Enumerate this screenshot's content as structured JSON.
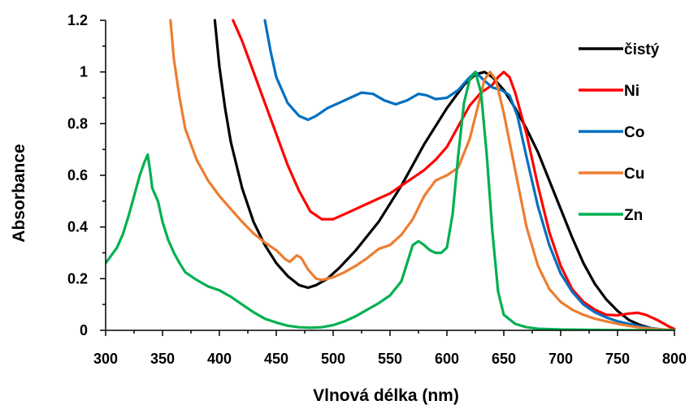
{
  "chart_data": {
    "type": "line",
    "xlabel": "Vlnová délka (nm)",
    "ylabel": "Absorbance",
    "xlim": [
      300,
      800
    ],
    "ylim": [
      0,
      1.2
    ],
    "xticks": [
      "300",
      "350",
      "400",
      "450",
      "500",
      "550",
      "600",
      "650",
      "700",
      "750",
      "800"
    ],
    "yticks": [
      "0",
      "0.2",
      "0.4",
      "0.6",
      "0.8",
      "1",
      "1.2"
    ],
    "grid": false,
    "legend_position": "right",
    "series": [
      {
        "name": "čistý",
        "color": "#000000",
        "points": [
          [
            396,
            1.2
          ],
          [
            400,
            1.02
          ],
          [
            405,
            0.86
          ],
          [
            410,
            0.73
          ],
          [
            420,
            0.55
          ],
          [
            430,
            0.42
          ],
          [
            440,
            0.33
          ],
          [
            450,
            0.26
          ],
          [
            460,
            0.21
          ],
          [
            470,
            0.175
          ],
          [
            478,
            0.165
          ],
          [
            485,
            0.175
          ],
          [
            495,
            0.2
          ],
          [
            505,
            0.24
          ],
          [
            520,
            0.31
          ],
          [
            540,
            0.42
          ],
          [
            560,
            0.56
          ],
          [
            580,
            0.72
          ],
          [
            600,
            0.86
          ],
          [
            615,
            0.95
          ],
          [
            625,
            0.99
          ],
          [
            633,
            1.0
          ],
          [
            640,
            0.98
          ],
          [
            650,
            0.93
          ],
          [
            660,
            0.86
          ],
          [
            670,
            0.78
          ],
          [
            680,
            0.69
          ],
          [
            690,
            0.58
          ],
          [
            700,
            0.47
          ],
          [
            710,
            0.36
          ],
          [
            720,
            0.26
          ],
          [
            730,
            0.18
          ],
          [
            740,
            0.12
          ],
          [
            750,
            0.075
          ],
          [
            760,
            0.04
          ],
          [
            770,
            0.02
          ],
          [
            780,
            0.008
          ],
          [
            790,
            0.002
          ],
          [
            800,
            0.0
          ]
        ]
      },
      {
        "name": "Ni",
        "color": "#ff0000",
        "points": [
          [
            412,
            1.2
          ],
          [
            420,
            1.12
          ],
          [
            430,
            1.0
          ],
          [
            440,
            0.88
          ],
          [
            450,
            0.76
          ],
          [
            460,
            0.64
          ],
          [
            470,
            0.54
          ],
          [
            480,
            0.46
          ],
          [
            490,
            0.43
          ],
          [
            500,
            0.43
          ],
          [
            510,
            0.45
          ],
          [
            520,
            0.47
          ],
          [
            530,
            0.49
          ],
          [
            540,
            0.51
          ],
          [
            550,
            0.53
          ],
          [
            560,
            0.56
          ],
          [
            570,
            0.59
          ],
          [
            580,
            0.62
          ],
          [
            590,
            0.66
          ],
          [
            600,
            0.71
          ],
          [
            610,
            0.79
          ],
          [
            620,
            0.87
          ],
          [
            630,
            0.92
          ],
          [
            640,
            0.95
          ],
          [
            645,
            0.98
          ],
          [
            650,
            1.0
          ],
          [
            655,
            0.98
          ],
          [
            660,
            0.92
          ],
          [
            670,
            0.76
          ],
          [
            680,
            0.56
          ],
          [
            690,
            0.38
          ],
          [
            700,
            0.25
          ],
          [
            710,
            0.16
          ],
          [
            720,
            0.11
          ],
          [
            730,
            0.08
          ],
          [
            740,
            0.06
          ],
          [
            750,
            0.058
          ],
          [
            760,
            0.065
          ],
          [
            768,
            0.068
          ],
          [
            775,
            0.06
          ],
          [
            785,
            0.04
          ],
          [
            795,
            0.015
          ],
          [
            800,
            0.005
          ]
        ]
      },
      {
        "name": "Co",
        "color": "#0070c0",
        "points": [
          [
            440,
            1.2
          ],
          [
            445,
            1.08
          ],
          [
            450,
            0.98
          ],
          [
            460,
            0.88
          ],
          [
            470,
            0.83
          ],
          [
            478,
            0.815
          ],
          [
            485,
            0.83
          ],
          [
            495,
            0.86
          ],
          [
            505,
            0.88
          ],
          [
            515,
            0.9
          ],
          [
            525,
            0.92
          ],
          [
            535,
            0.915
          ],
          [
            545,
            0.89
          ],
          [
            555,
            0.875
          ],
          [
            565,
            0.89
          ],
          [
            575,
            0.915
          ],
          [
            582,
            0.91
          ],
          [
            590,
            0.895
          ],
          [
            600,
            0.9
          ],
          [
            610,
            0.93
          ],
          [
            618,
            0.97
          ],
          [
            625,
            1.0
          ],
          [
            632,
            0.97
          ],
          [
            640,
            0.94
          ],
          [
            648,
            0.93
          ],
          [
            655,
            0.91
          ],
          [
            662,
            0.83
          ],
          [
            670,
            0.67
          ],
          [
            680,
            0.48
          ],
          [
            690,
            0.33
          ],
          [
            700,
            0.22
          ],
          [
            710,
            0.15
          ],
          [
            720,
            0.1
          ],
          [
            730,
            0.07
          ],
          [
            740,
            0.05
          ],
          [
            750,
            0.035
          ],
          [
            760,
            0.025
          ],
          [
            770,
            0.015
          ],
          [
            780,
            0.008
          ],
          [
            790,
            0.003
          ],
          [
            800,
            0.0
          ]
        ]
      },
      {
        "name": "Cu",
        "color": "#ed7d31",
        "points": [
          [
            357,
            1.2
          ],
          [
            360,
            1.05
          ],
          [
            365,
            0.9
          ],
          [
            370,
            0.78
          ],
          [
            380,
            0.66
          ],
          [
            390,
            0.58
          ],
          [
            400,
            0.52
          ],
          [
            410,
            0.47
          ],
          [
            420,
            0.42
          ],
          [
            430,
            0.375
          ],
          [
            440,
            0.34
          ],
          [
            450,
            0.31
          ],
          [
            458,
            0.275
          ],
          [
            462,
            0.265
          ],
          [
            468,
            0.29
          ],
          [
            472,
            0.28
          ],
          [
            478,
            0.235
          ],
          [
            485,
            0.2
          ],
          [
            490,
            0.195
          ],
          [
            500,
            0.205
          ],
          [
            510,
            0.225
          ],
          [
            520,
            0.25
          ],
          [
            530,
            0.28
          ],
          [
            540,
            0.315
          ],
          [
            550,
            0.33
          ],
          [
            560,
            0.37
          ],
          [
            570,
            0.43
          ],
          [
            580,
            0.52
          ],
          [
            590,
            0.58
          ],
          [
            600,
            0.6
          ],
          [
            610,
            0.63
          ],
          [
            620,
            0.74
          ],
          [
            628,
            0.88
          ],
          [
            633,
            0.97
          ],
          [
            638,
            1.0
          ],
          [
            643,
            0.97
          ],
          [
            650,
            0.84
          ],
          [
            660,
            0.62
          ],
          [
            670,
            0.4
          ],
          [
            680,
            0.25
          ],
          [
            690,
            0.16
          ],
          [
            700,
            0.11
          ],
          [
            710,
            0.08
          ],
          [
            720,
            0.06
          ],
          [
            730,
            0.045
          ],
          [
            740,
            0.035
          ],
          [
            750,
            0.025
          ],
          [
            760,
            0.017
          ],
          [
            770,
            0.01
          ],
          [
            780,
            0.006
          ],
          [
            790,
            0.003
          ],
          [
            800,
            0.001
          ]
        ]
      },
      {
        "name": "Zn",
        "color": "#00b050",
        "points": [
          [
            300,
            0.26
          ],
          [
            305,
            0.29
          ],
          [
            310,
            0.32
          ],
          [
            315,
            0.37
          ],
          [
            320,
            0.44
          ],
          [
            325,
            0.52
          ],
          [
            330,
            0.6
          ],
          [
            334,
            0.65
          ],
          [
            337,
            0.68
          ],
          [
            339,
            0.62
          ],
          [
            341,
            0.55
          ],
          [
            343,
            0.53
          ],
          [
            346,
            0.5
          ],
          [
            350,
            0.42
          ],
          [
            355,
            0.35
          ],
          [
            360,
            0.3
          ],
          [
            365,
            0.26
          ],
          [
            370,
            0.225
          ],
          [
            380,
            0.195
          ],
          [
            390,
            0.17
          ],
          [
            400,
            0.155
          ],
          [
            410,
            0.13
          ],
          [
            420,
            0.1
          ],
          [
            430,
            0.07
          ],
          [
            440,
            0.045
          ],
          [
            450,
            0.03
          ],
          [
            460,
            0.018
          ],
          [
            470,
            0.012
          ],
          [
            480,
            0.01
          ],
          [
            490,
            0.012
          ],
          [
            500,
            0.02
          ],
          [
            510,
            0.035
          ],
          [
            520,
            0.055
          ],
          [
            530,
            0.08
          ],
          [
            540,
            0.105
          ],
          [
            550,
            0.135
          ],
          [
            560,
            0.19
          ],
          [
            565,
            0.26
          ],
          [
            570,
            0.33
          ],
          [
            575,
            0.345
          ],
          [
            580,
            0.33
          ],
          [
            585,
            0.31
          ],
          [
            590,
            0.3
          ],
          [
            595,
            0.3
          ],
          [
            600,
            0.32
          ],
          [
            605,
            0.45
          ],
          [
            610,
            0.68
          ],
          [
            615,
            0.88
          ],
          [
            620,
            0.97
          ],
          [
            625,
            1.0
          ],
          [
            630,
            0.92
          ],
          [
            635,
            0.68
          ],
          [
            640,
            0.38
          ],
          [
            645,
            0.15
          ],
          [
            650,
            0.06
          ],
          [
            660,
            0.025
          ],
          [
            670,
            0.012
          ],
          [
            680,
            0.006
          ],
          [
            700,
            0.003
          ],
          [
            750,
            0.001
          ],
          [
            800,
            0.0
          ]
        ]
      }
    ]
  }
}
